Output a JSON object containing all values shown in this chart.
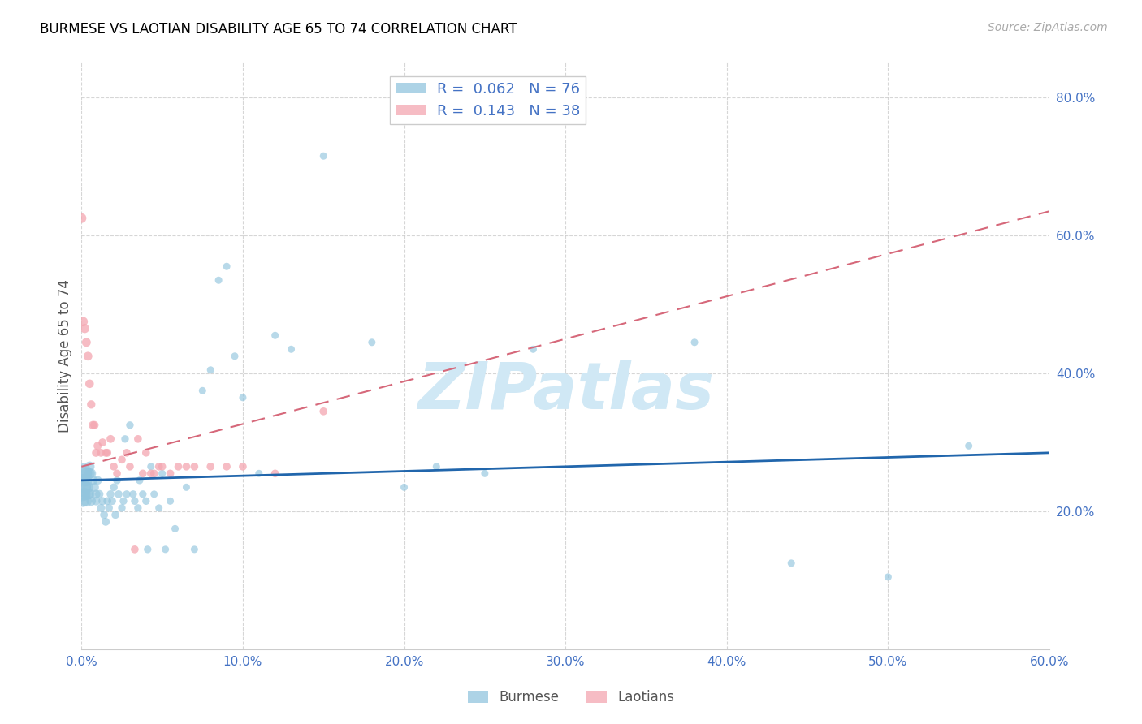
{
  "title": "BURMESE VS LAOTIAN DISABILITY AGE 65 TO 74 CORRELATION CHART",
  "source": "Source: ZipAtlas.com",
  "ylabel": "Disability Age 65 to 74",
  "xlim": [
    0.0,
    0.6
  ],
  "ylim": [
    0.0,
    0.85
  ],
  "xticks": [
    0.0,
    0.1,
    0.2,
    0.3,
    0.4,
    0.5,
    0.6
  ],
  "xticklabels": [
    "0.0%",
    "10.0%",
    "20.0%",
    "30.0%",
    "40.0%",
    "50.0%",
    "60.0%"
  ],
  "yticks": [
    0.0,
    0.2,
    0.4,
    0.6,
    0.8
  ],
  "yticklabels": [
    "",
    "20.0%",
    "40.0%",
    "60.0%",
    "80.0%"
  ],
  "burmese_color": "#92c5de",
  "laotian_color": "#f4a6b0",
  "burmese_line_color": "#2166ac",
  "laotian_line_color": "#d6687a",
  "grid_color": "#cccccc",
  "watermark_text": "ZIPatlas",
  "watermark_color": "#d0e8f5",
  "tick_color": "#4472c4",
  "R_burmese": 0.062,
  "N_burmese": 76,
  "R_laotian": 0.143,
  "N_laotian": 38,
  "burmese_line_x0": 0.0,
  "burmese_line_x1": 0.6,
  "burmese_line_y0": 0.245,
  "burmese_line_y1": 0.285,
  "laotian_line_x0": 0.0,
  "laotian_line_x1": 0.6,
  "laotian_line_y0": 0.265,
  "laotian_line_y1": 0.635,
  "burmese_x": [
    0.0,
    0.0,
    0.001,
    0.001,
    0.001,
    0.002,
    0.002,
    0.002,
    0.003,
    0.003,
    0.003,
    0.004,
    0.004,
    0.005,
    0.005,
    0.005,
    0.006,
    0.006,
    0.007,
    0.008,
    0.009,
    0.009,
    0.01,
    0.011,
    0.012,
    0.013,
    0.014,
    0.015,
    0.016,
    0.017,
    0.018,
    0.019,
    0.02,
    0.021,
    0.022,
    0.023,
    0.025,
    0.026,
    0.027,
    0.028,
    0.03,
    0.032,
    0.033,
    0.035,
    0.036,
    0.038,
    0.04,
    0.041,
    0.043,
    0.045,
    0.048,
    0.05,
    0.052,
    0.055,
    0.058,
    0.065,
    0.07,
    0.075,
    0.08,
    0.085,
    0.09,
    0.095,
    0.1,
    0.11,
    0.12,
    0.13,
    0.15,
    0.18,
    0.2,
    0.22,
    0.25,
    0.28,
    0.38,
    0.44,
    0.5,
    0.55
  ],
  "burmese_y": [
    0.255,
    0.235,
    0.225,
    0.245,
    0.215,
    0.255,
    0.235,
    0.225,
    0.245,
    0.255,
    0.215,
    0.235,
    0.225,
    0.255,
    0.265,
    0.225,
    0.255,
    0.215,
    0.245,
    0.235,
    0.225,
    0.215,
    0.245,
    0.225,
    0.205,
    0.215,
    0.195,
    0.185,
    0.215,
    0.205,
    0.225,
    0.215,
    0.235,
    0.195,
    0.245,
    0.225,
    0.205,
    0.215,
    0.305,
    0.225,
    0.325,
    0.225,
    0.215,
    0.205,
    0.245,
    0.225,
    0.215,
    0.145,
    0.265,
    0.225,
    0.205,
    0.255,
    0.145,
    0.215,
    0.175,
    0.235,
    0.145,
    0.375,
    0.405,
    0.535,
    0.555,
    0.425,
    0.365,
    0.255,
    0.455,
    0.435,
    0.715,
    0.445,
    0.235,
    0.265,
    0.255,
    0.435,
    0.445,
    0.125,
    0.105,
    0.295
  ],
  "burmese_size": [
    350,
    280,
    150,
    130,
    110,
    140,
    120,
    110,
    110,
    100,
    95,
    95,
    90,
    85,
    80,
    80,
    75,
    70,
    70,
    65,
    60,
    58,
    58,
    55,
    52,
    52,
    50,
    50,
    48,
    48,
    48,
    48,
    48,
    48,
    48,
    48,
    45,
    45,
    45,
    45,
    45,
    45,
    45,
    45,
    45,
    45,
    45,
    45,
    42,
    42,
    42,
    42,
    42,
    42,
    42,
    42,
    42,
    42,
    42,
    42,
    42,
    42,
    42,
    42,
    42,
    42,
    42,
    42,
    42,
    42,
    42,
    42,
    42,
    42,
    42,
    42
  ],
  "laotian_x": [
    0.0,
    0.001,
    0.002,
    0.003,
    0.004,
    0.005,
    0.006,
    0.007,
    0.008,
    0.009,
    0.01,
    0.012,
    0.013,
    0.015,
    0.016,
    0.018,
    0.02,
    0.022,
    0.025,
    0.028,
    0.03,
    0.033,
    0.035,
    0.038,
    0.04,
    0.043,
    0.045,
    0.048,
    0.05,
    0.055,
    0.06,
    0.065,
    0.07,
    0.08,
    0.09,
    0.1,
    0.12,
    0.15
  ],
  "laotian_y": [
    0.625,
    0.475,
    0.465,
    0.445,
    0.425,
    0.385,
    0.355,
    0.325,
    0.325,
    0.285,
    0.295,
    0.285,
    0.3,
    0.285,
    0.285,
    0.305,
    0.265,
    0.255,
    0.275,
    0.285,
    0.265,
    0.145,
    0.305,
    0.255,
    0.285,
    0.255,
    0.255,
    0.265,
    0.265,
    0.255,
    0.265,
    0.265,
    0.265,
    0.265,
    0.265,
    0.265,
    0.255,
    0.345
  ],
  "laotian_size": [
    75,
    70,
    65,
    62,
    60,
    58,
    55,
    55,
    55,
    52,
    52,
    50,
    50,
    50,
    50,
    50,
    48,
    48,
    48,
    48,
    48,
    48,
    48,
    48,
    48,
    48,
    48,
    48,
    48,
    48,
    48,
    48,
    48,
    48,
    48,
    48,
    48,
    48
  ]
}
